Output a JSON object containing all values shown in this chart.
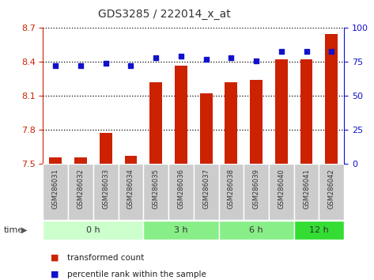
{
  "title": "GDS3285 / 222014_x_at",
  "samples": [
    "GSM286031",
    "GSM286032",
    "GSM286033",
    "GSM286034",
    "GSM286035",
    "GSM286036",
    "GSM286037",
    "GSM286038",
    "GSM286039",
    "GSM286040",
    "GSM286041",
    "GSM286042"
  ],
  "bar_values": [
    7.56,
    7.56,
    7.77,
    7.57,
    8.22,
    8.37,
    8.12,
    8.22,
    8.24,
    8.42,
    8.42,
    8.65
  ],
  "scatter_values": [
    72,
    72,
    74,
    72,
    78,
    79,
    77,
    78,
    76,
    83,
    83,
    83
  ],
  "ylim_left": [
    7.5,
    8.7
  ],
  "ylim_right": [
    0,
    100
  ],
  "yticks_left": [
    7.5,
    7.8,
    8.1,
    8.4,
    8.7
  ],
  "yticks_right": [
    0,
    25,
    50,
    75,
    100
  ],
  "bar_color": "#cc2200",
  "scatter_color": "#1111cc",
  "bar_bottom": 7.5,
  "group_labels": [
    "0 h",
    "3 h",
    "6 h",
    "12 h"
  ],
  "group_ranges": [
    [
      0,
      4
    ],
    [
      4,
      7
    ],
    [
      7,
      10
    ],
    [
      10,
      12
    ]
  ],
  "group_colors": [
    "#ccffcc",
    "#88ee88",
    "#88ee88",
    "#33dd33"
  ],
  "time_label": "time",
  "legend_bar_label": "transformed count",
  "legend_scatter_label": "percentile rank within the sample",
  "grid_color": "#000000",
  "plot_bg_color": "#ffffff",
  "sample_row_color": "#cccccc",
  "tick_label_color_left": "#cc2200",
  "tick_label_color_right": "#1111cc",
  "title_fontsize": 10,
  "bar_width": 0.5
}
